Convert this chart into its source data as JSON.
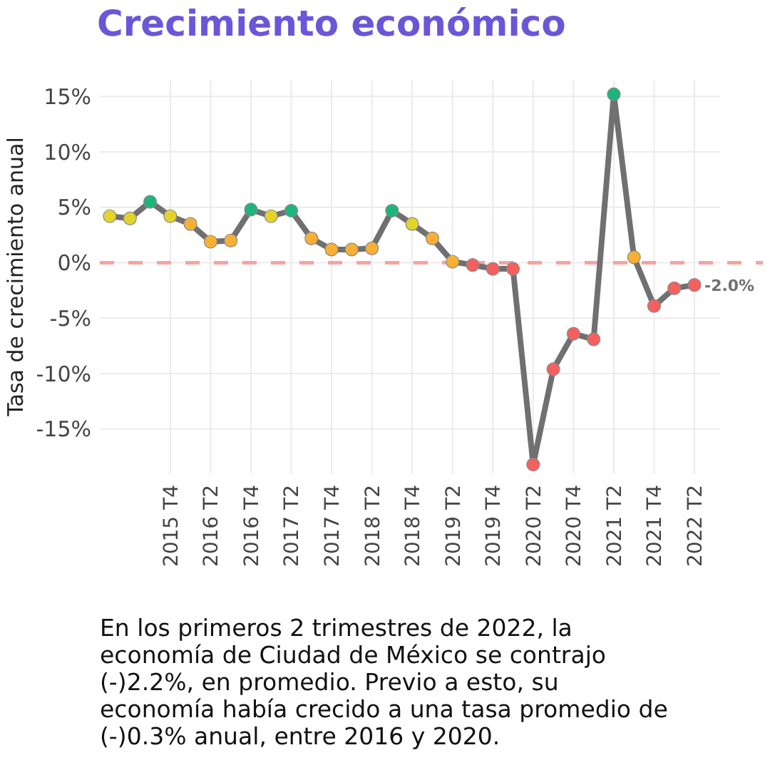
{
  "chart_data": {
    "type": "line",
    "title": "Crecimiento económico",
    "ylabel": "Tasa de crecimiento anual",
    "categories": [
      null,
      null,
      null,
      "2015 T4",
      null,
      "2016 T2",
      null,
      "2016 T4",
      null,
      "2017 T2",
      null,
      "2017 T4",
      null,
      "2018 T2",
      null,
      "2018 T4",
      null,
      "2019 T2",
      null,
      "2019 T4",
      null,
      "2020 T2",
      null,
      "2020 T4",
      null,
      "2021 T2",
      null,
      "2021 T4",
      null,
      "2022 T2"
    ],
    "series": [
      {
        "color": "#707070",
        "values": [
          4.2,
          4.0,
          5.5,
          4.2,
          3.5,
          1.9,
          2.0,
          4.8,
          4.2,
          4.7,
          2.2,
          1.2,
          1.2,
          1.3,
          4.7,
          3.5,
          2.2,
          0.1,
          -0.2,
          -0.55,
          -0.55,
          -18.2,
          -9.6,
          -6.4,
          -6.9,
          15.2,
          0.5,
          -3.9,
          -2.3,
          -2.0
        ],
        "colors": [
          "#e3d42c",
          "#e3d42c",
          "#1fb47e",
          "#e3d42c",
          "#f8b034",
          "#f8b034",
          "#f8b034",
          "#1fb47e",
          "#e3d42c",
          "#1fb47e",
          "#f8b034",
          "#f8b034",
          "#f8b034",
          "#f8b034",
          "#1fb47e",
          "#e3d42c",
          "#f8b034",
          "#f8b034",
          "#f5605e",
          "#f5605e",
          "#f5605e",
          "#f5605e",
          "#f5605e",
          "#f5605e",
          "#f5605e",
          "#1fb47e",
          "#f8b034",
          "#f5605e",
          "#f5605e",
          "#f5605e"
        ],
        "value_labels": [
          null,
          null,
          null,
          null,
          null,
          null,
          null,
          null,
          null,
          null,
          null,
          null,
          null,
          null,
          null,
          null,
          null,
          null,
          null,
          null,
          null,
          null,
          null,
          null,
          null,
          null,
          null,
          null,
          null,
          "-2.0%"
        ]
      }
    ],
    "ylim": [
      -19,
      16.5
    ],
    "yticks": [
      {
        "value": -15,
        "label": "-15%"
      },
      {
        "value": -10,
        "label": "-10%"
      },
      {
        "value": -5,
        "label": "-5%"
      },
      {
        "value": 0,
        "label": "0%"
      },
      {
        "value": 5,
        "label": "5%"
      },
      {
        "value": 10,
        "label": "10%"
      },
      {
        "value": 15,
        "label": "15%"
      }
    ],
    "ref_lines": [
      {
        "axis": "y",
        "value": 0,
        "color": "#f8a3a0",
        "line_style": "dashed"
      }
    ],
    "grid": true,
    "marker": "circle",
    "line_style": "solid",
    "annotations": [
      "En los primeros 2 trimestres de 2022, la economía de Ciudad de México se contrajo (-)2.2%, en promedio. Previo a esto, su economía había crecido a una tasa promedio de (-)0.3% anual, entre 2016 y 2020."
    ]
  }
}
